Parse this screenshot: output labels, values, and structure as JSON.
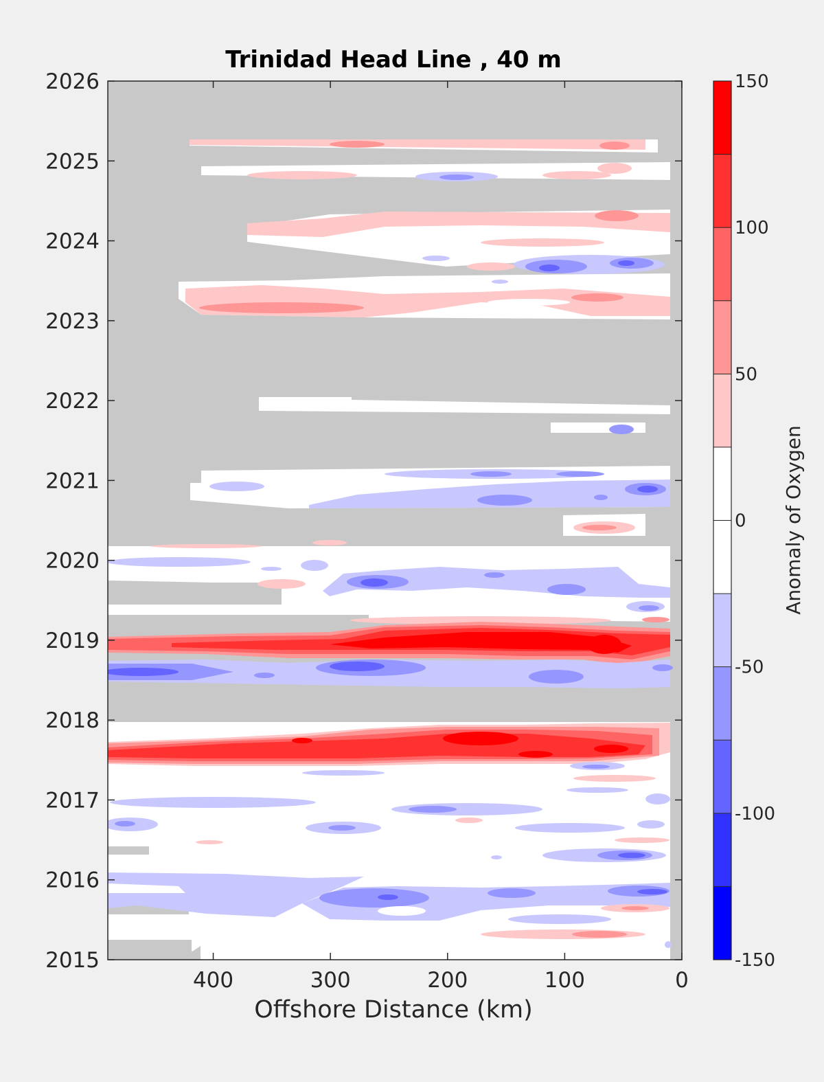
{
  "chart_data": {
    "type": "heatmap",
    "title": "Trinidad Head Line , 40 m",
    "xlabel": "Offshore Distance (km)",
    "ylabel": "",
    "xlim": [
      490,
      0
    ],
    "x_reversed": true,
    "ylim": [
      2015,
      2026
    ],
    "x_ticks": [
      400,
      300,
      200,
      100,
      0
    ],
    "y_ticks": [
      2015,
      2016,
      2017,
      2018,
      2019,
      2020,
      2021,
      2022,
      2023,
      2024,
      2025,
      2026
    ],
    "grid": false,
    "missing_color": "#c8c8c8",
    "colorbar": {
      "label": "Anomaly of Oxygen",
      "range": [
        -150,
        150
      ],
      "levels": [
        -150,
        -125,
        -100,
        -75,
        -50,
        -25,
        0,
        25,
        50,
        75,
        100,
        125,
        150
      ],
      "tick_labels": [
        "-150",
        "-100",
        "-50",
        "0",
        "50",
        "100",
        "150"
      ],
      "colors": [
        "#0000ff",
        "#3232ff",
        "#6464ff",
        "#9696ff",
        "#c8c8ff",
        "#ffffff",
        "#ffffff",
        "#ffc8c8",
        "#ff9696",
        "#ff6464",
        "#ff3232",
        "#ff0000"
      ]
    },
    "series": [
      {
        "y": [
          2025.18,
          2025.28
        ],
        "x": [
          420,
          20
        ],
        "value": 35
      },
      {
        "y": [
          2024.78,
          2025.0
        ],
        "x": [
          410,
          10
        ],
        "value": 0
      },
      {
        "y": [
          2024.75,
          2024.92
        ],
        "x": [
          300,
          0
        ],
        "value": -40
      },
      {
        "y": [
          2023.1,
          2024.38
        ],
        "x": [
          380,
          10
        ],
        "value": 35
      },
      {
        "y": [
          2023.9,
          2024.25
        ],
        "x": [
          290,
          10
        ],
        "value": 0
      },
      {
        "y": [
          2023.6,
          2023.75
        ],
        "x": [
          130,
          20
        ],
        "value": -60
      },
      {
        "y": [
          2023.12,
          2023.3
        ],
        "x": [
          400,
          250
        ],
        "value": 70
      },
      {
        "y": [
          2023.2,
          2023.3
        ],
        "x": [
          90,
          30
        ],
        "value": 70
      },
      {
        "y": [
          2023.65,
          2023.7
        ],
        "x": [
          110,
          90
        ],
        "value": -100
      },
      {
        "y": [
          2021.9,
          2022.0
        ],
        "x": [
          360,
          10
        ],
        "value": 0
      },
      {
        "y": [
          2020.4,
          2021.1
        ],
        "x": [
          410,
          10
        ],
        "value": -10
      },
      {
        "y": [
          2020.8,
          2021.0
        ],
        "x": [
          270,
          10
        ],
        "value": -40
      },
      {
        "y": [
          2020.85,
          2020.95
        ],
        "x": [
          50,
          20
        ],
        "value": -70
      },
      {
        "y": [
          2020.3,
          2020.5
        ],
        "x": [
          100,
          30
        ],
        "value": 40
      },
      {
        "y": [
          2017.4,
          2020.2
        ],
        "x": [
          490,
          10
        ],
        "value": 0
      },
      {
        "y": [
          2019.5,
          2019.9
        ],
        "x": [
          290,
          10
        ],
        "value": -40
      },
      {
        "y": [
          2019.65,
          2019.75
        ],
        "x": [
          270,
          230
        ],
        "value": -80
      },
      {
        "y": [
          2018.8,
          2019.05
        ],
        "x": [
          490,
          10
        ],
        "value": 100
      },
      {
        "y": [
          2018.88,
          2019.05
        ],
        "x": [
          260,
          40
        ],
        "value": 140
      },
      {
        "y": [
          2018.4,
          2018.65
        ],
        "x": [
          490,
          10
        ],
        "value": -40
      },
      {
        "y": [
          2018.5,
          2018.6
        ],
        "x": [
          480,
          420
        ],
        "value": -90
      },
      {
        "y": [
          2017.5,
          2017.9
        ],
        "x": [
          490,
          20
        ],
        "value": 90
      },
      {
        "y": [
          2017.55,
          2017.85
        ],
        "x": [
          240,
          40
        ],
        "value": 140
      },
      {
        "y": [
          2015.3,
          2017.0
        ],
        "x": [
          490,
          10
        ],
        "value": -30
      },
      {
        "y": [
          2016.25,
          2016.32
        ],
        "x": [
          100,
          30
        ],
        "value": -100
      },
      {
        "y": [
          2015.6,
          2015.65
        ],
        "x": [
          260,
          230
        ],
        "value": -110
      },
      {
        "y": [
          2015.2,
          2015.3
        ],
        "x": [
          90,
          30
        ],
        "value": 50
      }
    ]
  }
}
